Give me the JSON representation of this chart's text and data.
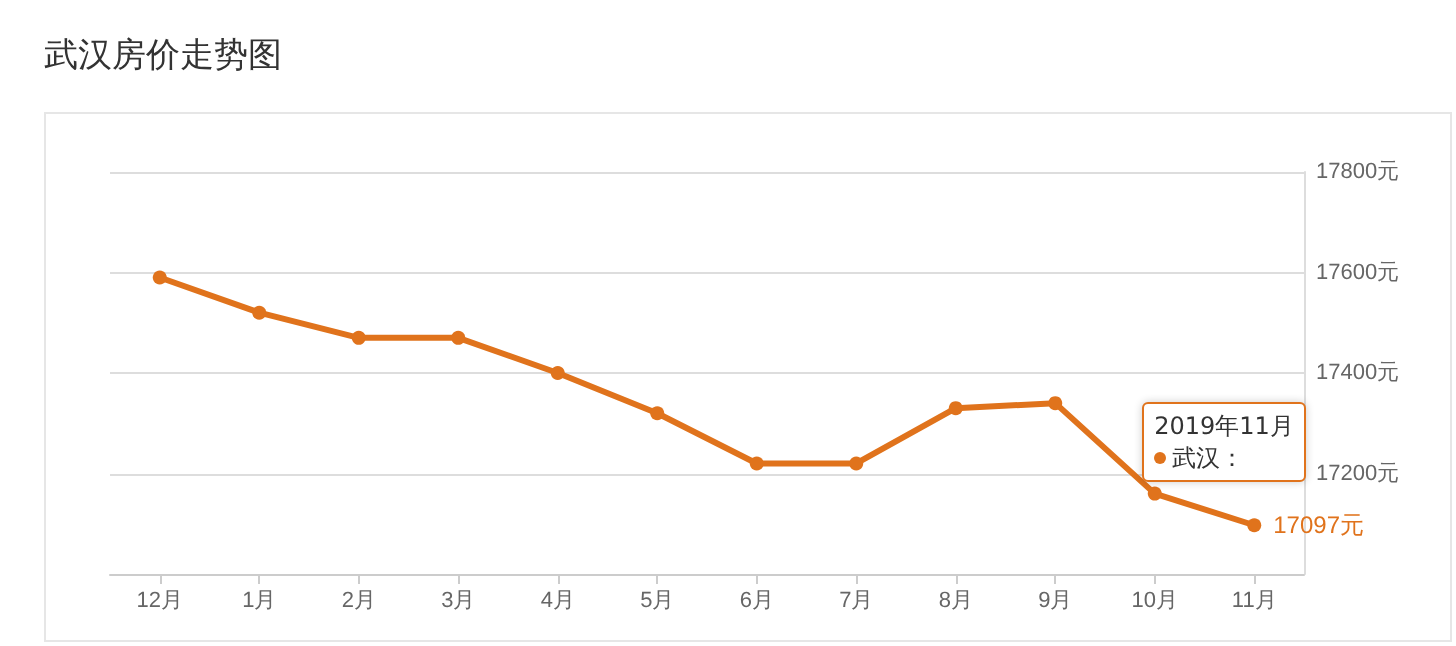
{
  "chart_data": {
    "type": "line",
    "title": "武汉房价走势图",
    "categories": [
      "12月",
      "1月",
      "2月",
      "3月",
      "4月",
      "5月",
      "6月",
      "7月",
      "8月",
      "9月",
      "10月",
      "11月"
    ],
    "series": [
      {
        "name": "武汉：",
        "color": "#e0731c",
        "values": [
          17590,
          17520,
          17470,
          17470,
          17400,
          17320,
          17220,
          17220,
          17330,
          17340,
          17160,
          17097
        ],
        "value_labels": [
          null,
          null,
          null,
          null,
          null,
          null,
          null,
          null,
          null,
          null,
          null,
          "17097元"
        ]
      }
    ],
    "ylim": [
      17000,
      17800
    ],
    "yticks": [
      {
        "value": 17000,
        "label": null
      },
      {
        "value": 17200,
        "label": "17200元"
      },
      {
        "value": 17400,
        "label": "17400元"
      },
      {
        "value": 17600,
        "label": "17600元"
      },
      {
        "value": 17800,
        "label": "17800元"
      }
    ],
    "annotations": [
      "2019年11月"
    ],
    "grid": "y",
    "marker": "circle",
    "line_style": "solid",
    "legend": "right"
  }
}
